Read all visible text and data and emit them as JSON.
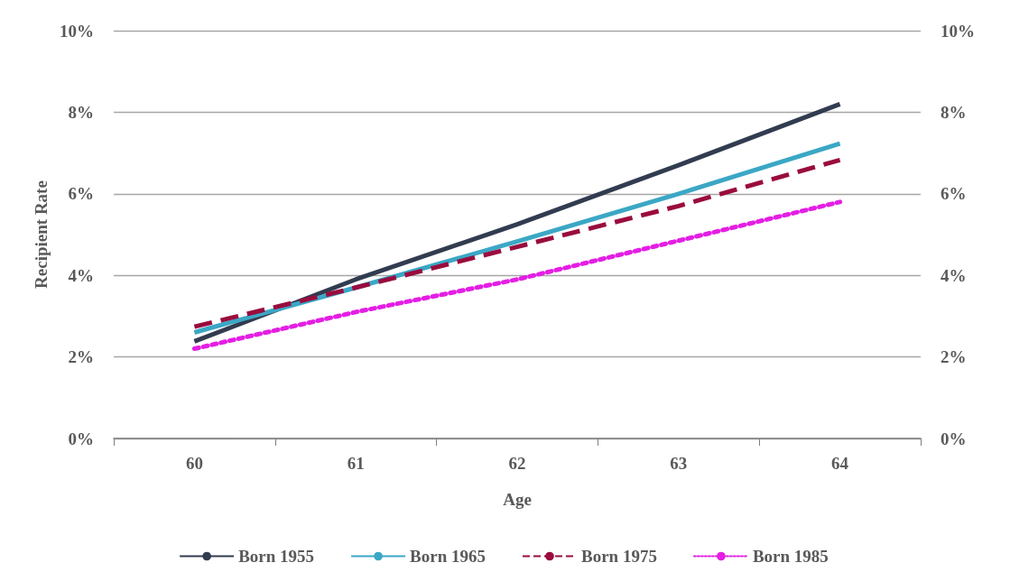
{
  "chart_data": {
    "type": "line",
    "xlabel": "Age",
    "ylabel": "Recipient Rate",
    "categories": [
      "60",
      "61",
      "62",
      "63",
      "64"
    ],
    "series": [
      {
        "name": "Born 1955",
        "color": "#323c50",
        "line_style": "solid",
        "values": [
          2.38,
          3.9,
          5.25,
          6.7,
          8.2
        ]
      },
      {
        "name": "Born 1965",
        "color": "#3ba7c5",
        "line_style": "solid",
        "values": [
          2.6,
          3.7,
          4.83,
          6.0,
          7.23
        ]
      },
      {
        "name": "Born 1975",
        "color": "#9a0c3e",
        "line_style": "dashed",
        "values": [
          2.74,
          3.7,
          4.7,
          5.7,
          6.83
        ]
      },
      {
        "name": "Born 1985",
        "color": "#e41ee4",
        "line_style": "dotted",
        "values": [
          2.2,
          3.1,
          3.9,
          4.85,
          5.8
        ]
      }
    ],
    "ylim": [
      0,
      10
    ],
    "yticks": [
      {
        "value": 0,
        "label": "0%"
      },
      {
        "value": 2,
        "label": "2%"
      },
      {
        "value": 4,
        "label": "4%"
      },
      {
        "value": 6,
        "label": "6%"
      },
      {
        "value": 8,
        "label": "8%"
      },
      {
        "value": 10,
        "label": "10%"
      }
    ],
    "y2lim": [
      0,
      10
    ],
    "y2ticks": [
      {
        "value": 0,
        "label": "0%"
      },
      {
        "value": 2,
        "label": "2%"
      },
      {
        "value": 4,
        "label": "4%"
      },
      {
        "value": 6,
        "label": "6%"
      },
      {
        "value": 8,
        "label": "8%"
      },
      {
        "value": 10,
        "label": "10%"
      }
    ],
    "grid": "y",
    "legend": "bottom",
    "marker": "none"
  }
}
